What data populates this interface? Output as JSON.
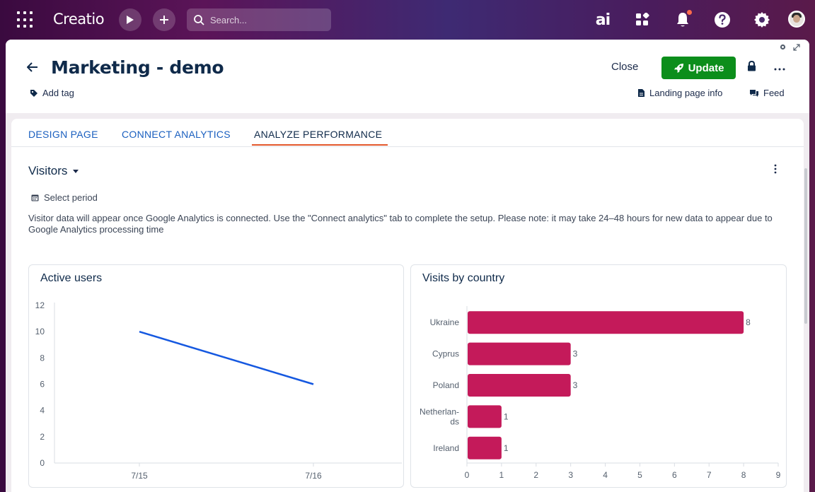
{
  "topbar": {
    "logo": "Creatio",
    "search_placeholder": "Search...",
    "ai_label": "ai"
  },
  "header": {
    "title": "Marketing - demo",
    "add_tag": "Add tag",
    "close_label": "Close",
    "update_label": "Update",
    "landing_info": "Landing page info",
    "feed": "Feed"
  },
  "tabs": [
    {
      "label": "DESIGN PAGE"
    },
    {
      "label": "CONNECT ANALYTICS"
    },
    {
      "label": "ANALYZE PERFORMANCE"
    }
  ],
  "visitors": {
    "title": "Visitors",
    "period": "Select period",
    "notice": "Visitor data will appear once Google Analytics is connected. Use the \"Connect analytics\" tab to complete the setup. Please note: it may take 24–48 hours for new data to appear due to Google Analytics processing time"
  },
  "colors": {
    "update_green": "#0c8e1b",
    "tab_accent": "#e2572b",
    "line_blue": "#1558e0",
    "bar_crimson": "#c41a5a"
  },
  "chart_data": [
    {
      "type": "line",
      "title": "Active users",
      "x": [
        "7/15",
        "7/16"
      ],
      "series": [
        {
          "values": [
            10,
            6
          ]
        }
      ],
      "ylim": [
        0,
        12
      ],
      "yticks": [
        0,
        2,
        4,
        6,
        8,
        10,
        12
      ],
      "grid": false
    },
    {
      "type": "bar",
      "orientation": "horizontal",
      "title": "Visits by country",
      "categories": [
        "Ukraine",
        "Cyprus",
        "Poland",
        "Netherlands",
        "Ireland"
      ],
      "category_labels": [
        [
          "Ukraine"
        ],
        [
          "Cyprus"
        ],
        [
          "Poland"
        ],
        [
          "Netherlan-",
          "ds"
        ],
        [
          "Ireland"
        ]
      ],
      "values": [
        8,
        3,
        3,
        1,
        1
      ],
      "xlim": [
        0,
        9
      ],
      "xticks": [
        0,
        1,
        2,
        3,
        4,
        5,
        6,
        7,
        8,
        9
      ],
      "data_labels": true
    }
  ]
}
